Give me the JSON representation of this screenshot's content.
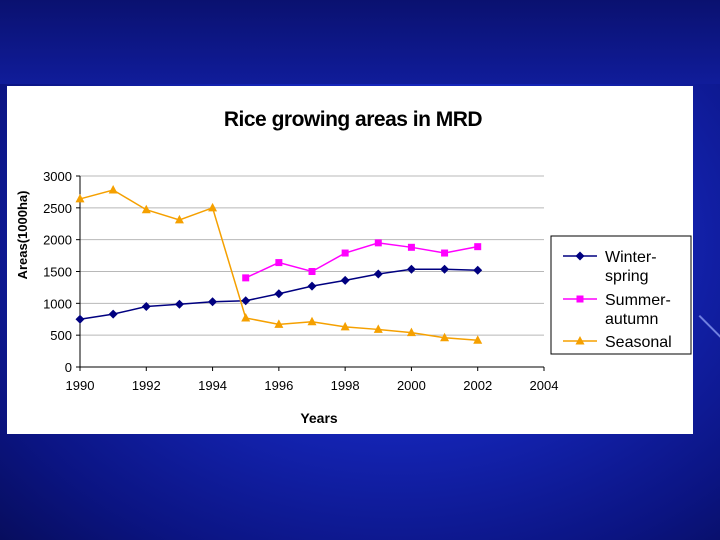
{
  "chart_data": {
    "type": "line",
    "title": "Rice growing areas in MRD",
    "xlabel": "Years",
    "ylabel": "Areas(1000ha)",
    "xlim": [
      1990,
      2004
    ],
    "ylim": [
      0,
      3000
    ],
    "x_ticks": [
      "1990",
      "1992",
      "1994",
      "1996",
      "1998",
      "2000",
      "2002",
      "2004"
    ],
    "y_ticks": [
      "0",
      "500",
      "1000",
      "1500",
      "2000",
      "2500",
      "3000"
    ],
    "grid": "horizontal",
    "legend_position": "right",
    "series": [
      {
        "name": "Winter-spring",
        "legend_lines": [
          "Winter-",
          "spring"
        ],
        "color": "#000080",
        "marker": "diamond",
        "x": [
          1990,
          1991,
          1992,
          1993,
          1994,
          1995,
          1996,
          1997,
          1998,
          1999,
          2000,
          2001,
          2002
        ],
        "y": [
          750,
          830,
          950,
          985,
          1025,
          1040,
          1150,
          1270,
          1360,
          1460,
          1535,
          1535,
          1520
        ]
      },
      {
        "name": "Summer-autumn",
        "legend_lines": [
          "Summer-",
          "autumn"
        ],
        "color": "#ff00ff",
        "marker": "square",
        "x": [
          1995,
          1996,
          1997,
          1998,
          1999,
          2000,
          2001,
          2002
        ],
        "y": [
          1400,
          1640,
          1500,
          1790,
          1950,
          1880,
          1790,
          1890
        ]
      },
      {
        "name": "Seasonal",
        "legend_lines": [
          "Seasonal"
        ],
        "color": "#f5a000",
        "marker": "triangle",
        "x": [
          1990,
          1991,
          1992,
          1993,
          1994,
          1995,
          1996,
          1997,
          1998,
          1999,
          2000,
          2001,
          2002
        ],
        "y": [
          2640,
          2780,
          2470,
          2310,
          2500,
          770,
          670,
          710,
          630,
          590,
          540,
          460,
          420
        ]
      }
    ]
  }
}
